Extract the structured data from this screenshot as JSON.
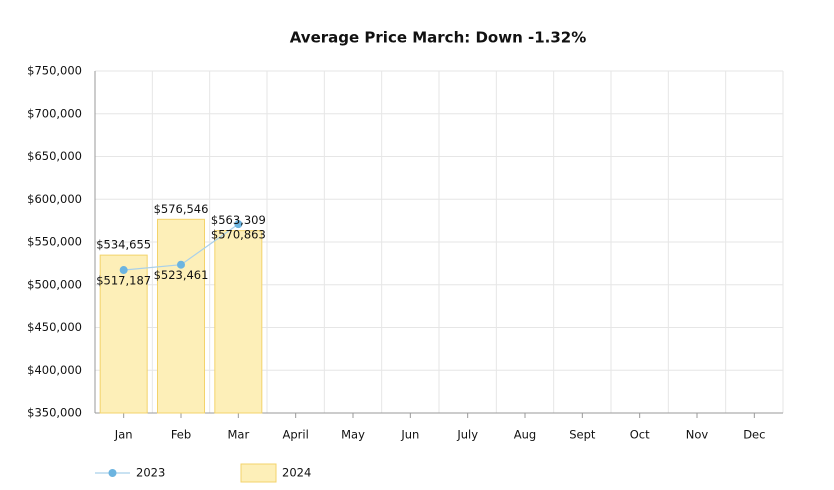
{
  "chart_data": {
    "type": "bar",
    "title": "Average Price March: Down -1.32%",
    "categories": [
      "Jan",
      "Feb",
      "Mar",
      "April",
      "May",
      "Jun",
      "July",
      "Aug",
      "Sept",
      "Oct",
      "Nov",
      "Dec"
    ],
    "series": [
      {
        "name": "2023",
        "type": "line",
        "color": "#6cb4e0",
        "values": [
          517187,
          523461,
          570863,
          null,
          null,
          null,
          null,
          null,
          null,
          null,
          null,
          null
        ],
        "value_labels": [
          "$517,187",
          "$523,461",
          "$570,863",
          null,
          null,
          null,
          null,
          null,
          null,
          null,
          null,
          null
        ]
      },
      {
        "name": "2024",
        "type": "bar",
        "color": "#fdefb8",
        "values": [
          534655,
          576546,
          563309,
          null,
          null,
          null,
          null,
          null,
          null,
          null,
          null,
          null
        ],
        "value_labels": [
          "$534,655",
          "$576,546",
          "$563,309",
          null,
          null,
          null,
          null,
          null,
          null,
          null,
          null,
          null
        ]
      }
    ],
    "ylim": [
      350000,
      750000
    ],
    "yticks": [
      {
        "value": 350000,
        "label": "$350,000"
      },
      {
        "value": 400000,
        "label": "$400,000"
      },
      {
        "value": 450000,
        "label": "$450,000"
      },
      {
        "value": 500000,
        "label": "$500,000"
      },
      {
        "value": 550000,
        "label": "$550,000"
      },
      {
        "value": 600000,
        "label": "$600,000"
      },
      {
        "value": 650000,
        "label": "$650,000"
      },
      {
        "value": 700000,
        "label": "$700,000"
      },
      {
        "value": 750000,
        "label": "$750,000"
      }
    ],
    "grid": true,
    "legend": "bottom-left"
  }
}
